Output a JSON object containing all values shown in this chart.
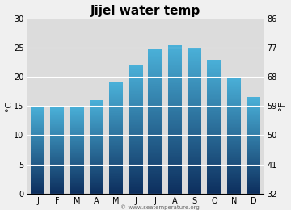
{
  "title": "Jijel water temp",
  "months": [
    "J",
    "F",
    "M",
    "A",
    "M",
    "J",
    "J",
    "A",
    "S",
    "O",
    "N",
    "D"
  ],
  "values": [
    15.0,
    14.8,
    15.0,
    16.0,
    19.0,
    22.0,
    24.8,
    25.5,
    25.0,
    23.0,
    20.0,
    16.5
  ],
  "ylim_c": [
    0,
    30
  ],
  "yticks_c": [
    0,
    5,
    10,
    15,
    20,
    25,
    30
  ],
  "yticks_f": [
    32,
    41,
    50,
    59,
    68,
    77,
    86
  ],
  "ylabel_left": "°C",
  "ylabel_right": "°F",
  "color_top": "#4ab0d8",
  "color_bottom": "#0d2f5e",
  "plot_bg": "#dcdcdc",
  "fig_bg": "#f0f0f0",
  "title_fontsize": 11,
  "tick_fontsize": 7,
  "footer": "© www.seatemperature.org"
}
